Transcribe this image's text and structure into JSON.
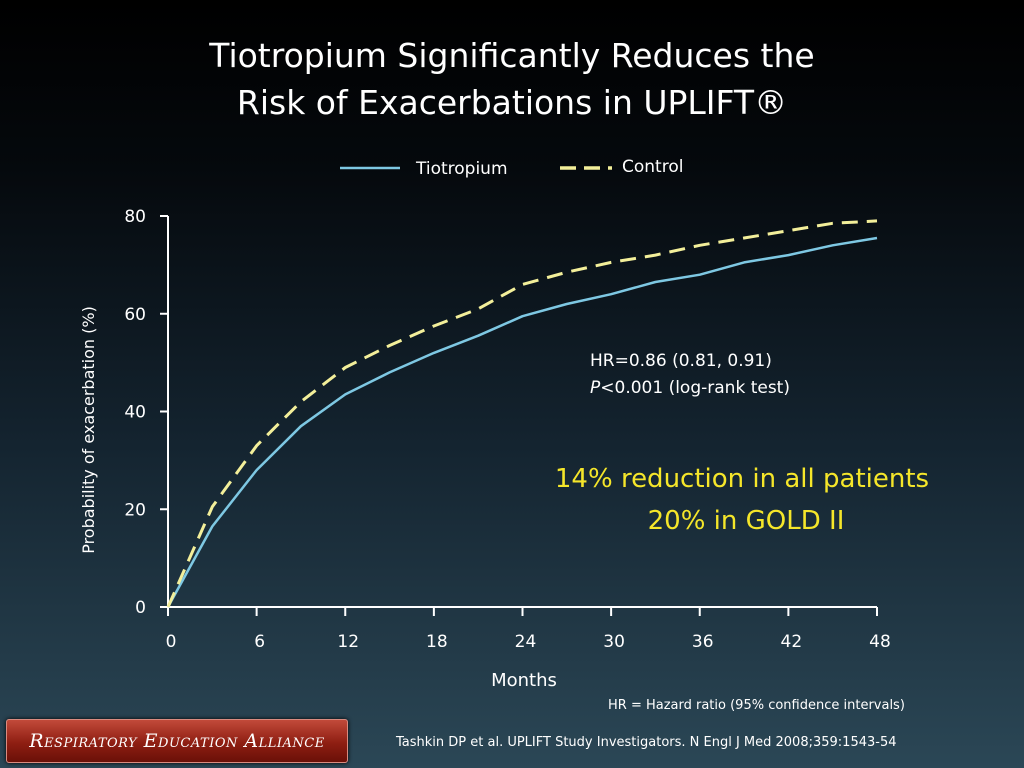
{
  "slide": {
    "title_line1": "Tiotropium Significantly Reduces the",
    "title_line2": "Risk of Exacerbations in UPLIFT®",
    "hr_footnote": "HR = Hazard ratio (95% confidence intervals)",
    "citation": "Tashkin DP et al. UPLIFT Study Investigators. N Engl J Med 2008;359:1543-54",
    "logo_text": "Respiratory Education Alliance"
  },
  "chart_data": {
    "type": "line",
    "title": "",
    "xlabel": "Months",
    "ylabel": "Probability of exacerbation (%)",
    "xlim": [
      0,
      48
    ],
    "ylim": [
      0,
      80
    ],
    "x_ticks": [
      0,
      6,
      12,
      18,
      24,
      30,
      36,
      42,
      48
    ],
    "y_ticks": [
      0,
      20,
      40,
      60,
      80
    ],
    "grid": false,
    "legend_position": "top-center",
    "series": [
      {
        "name": "Tiotropium",
        "style": "solid",
        "color": "#7ec8e3",
        "x": [
          0,
          3,
          6,
          9,
          12,
          15,
          18,
          21,
          24,
          27,
          30,
          33,
          36,
          39,
          42,
          45,
          48
        ],
        "y": [
          0,
          16.5,
          28,
          37,
          43.5,
          48,
          52,
          55.5,
          59.5,
          62,
          64,
          66.5,
          68,
          70.5,
          72,
          74,
          75.5
        ]
      },
      {
        "name": "Control",
        "style": "dashed",
        "color": "#f3ef9a",
        "x": [
          0,
          3,
          6,
          9,
          12,
          15,
          18,
          21,
          24,
          27,
          30,
          33,
          36,
          39,
          42,
          45,
          48
        ],
        "y": [
          0,
          20.5,
          33,
          42,
          49,
          53.5,
          57.5,
          61,
          66,
          68.5,
          70.5,
          72,
          74,
          75.5,
          77,
          78.5,
          79
        ]
      }
    ],
    "annotations": [
      {
        "id": "hr",
        "text": "HR=0.86 (0.81, 0.91)",
        "color": "#ffffff"
      },
      {
        "id": "p",
        "prefix": "P",
        "text": "<0.001 (log-rank test)",
        "color": "#ffffff"
      },
      {
        "id": "reduction1",
        "text": "14% reduction in all patients",
        "color": "#f5e62a"
      },
      {
        "id": "reduction2",
        "text": "20% in GOLD II",
        "color": "#f5e62a"
      }
    ]
  }
}
